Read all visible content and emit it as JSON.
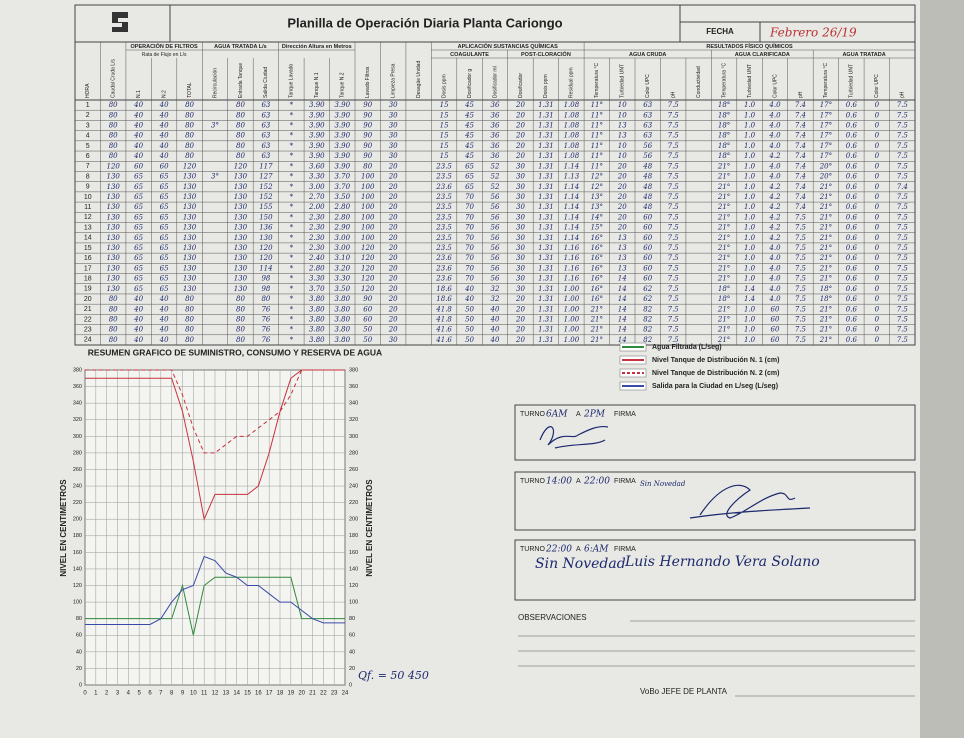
{
  "header": {
    "title": "Planilla de Operación Diaria Planta Cariongo",
    "fecha_label": "FECHA",
    "fecha": "Febrero 26/19"
  },
  "table": {
    "columns": [
      {
        "label": "HORA"
      },
      {
        "label": "Caudal Cruda L/s"
      },
      {
        "group": "OPERACIÓN DE FILTROS",
        "subtitle": "Rata de Flujo en L/s",
        "columns": [
          {
            "label": "N.1"
          },
          {
            "label": "N.2"
          },
          {
            "label": "TOTAL"
          }
        ]
      },
      {
        "group": "AGUA TRATADA L/s",
        "columns": [
          {
            "label": "Recirculación"
          },
          {
            "label": "Entrada Tanque"
          },
          {
            "label": "Salida Ciudad"
          }
        ]
      },
      {
        "group": "Dirección Altura en Metros",
        "columns": [
          {
            "label": "Tanque Lavado"
          },
          {
            "label": "Tanque N.1"
          },
          {
            "label": "Tanque N.2"
          }
        ]
      },
      {
        "label": "Lavado Filtros"
      },
      {
        "label": "Limpieza Presa"
      },
      {
        "label": "Desagüe Unidad"
      },
      {
        "group": "APLICACIÓN SUSTANCIAS QUÍMICAS",
        "columns": [
          {
            "group": "COAGULANTE",
            "columns": [
              {
                "label": "Dosis ppm"
              },
              {
                "label": "Dosificador g"
              },
              {
                "label": "Dosificador ml"
              }
            ]
          },
          {
            "group": "POST-CLORACIÓN",
            "columns": [
              {
                "label": "Dosificador"
              },
              {
                "label": "Dosis ppm"
              },
              {
                "label": "Residual ppm"
              }
            ]
          }
        ]
      },
      {
        "group": "RESULTADOS FÍSICO QUÍMICOS",
        "columns": [
          {
            "group": "AGUA CRUDA",
            "columns": [
              {
                "label": "Temperatura °C"
              },
              {
                "label": "Turbiedad UNT"
              },
              {
                "label": "Color UPC"
              },
              {
                "label": "pH"
              },
              {
                "label": "Conductividad"
              }
            ]
          },
          {
            "group": "AGUA CLARIFICADA",
            "columns": [
              {
                "label": "Temperatura °C"
              },
              {
                "label": "Turbiedad UNT"
              },
              {
                "label": "Color UPC"
              },
              {
                "label": "pH"
              }
            ]
          },
          {
            "group": "AGUA TRATADA",
            "columns": [
              {
                "label": "Temperatura °C"
              },
              {
                "label": "Turbiedad UNT"
              },
              {
                "label": "Color UPC"
              },
              {
                "label": "pH"
              }
            ]
          }
        ]
      }
    ],
    "rows": [
      [
        "1",
        "80",
        "40",
        "40",
        "80",
        null,
        "80",
        "63",
        "*",
        "3.90",
        "3.90",
        "90",
        "30",
        null,
        "15",
        "45",
        "36",
        "20",
        "1.31",
        "1.08",
        "11°",
        "10",
        "63",
        "7.5",
        null,
        "18°",
        "1.0",
        "4.0",
        "7.4",
        "17°",
        "0.6",
        "0",
        "7.5"
      ],
      [
        "2",
        "80",
        "40",
        "40",
        "80",
        null,
        "80",
        "63",
        "*",
        "3.90",
        "3.90",
        "90",
        "30",
        null,
        "15",
        "45",
        "36",
        "20",
        "1.31",
        "1.08",
        "11°",
        "10",
        "63",
        "7.5",
        null,
        "18°",
        "1.0",
        "4.0",
        "7.4",
        "17°",
        "0.6",
        "0",
        "7.5"
      ],
      [
        "3",
        "80",
        "40",
        "40",
        "80",
        "3°",
        "80",
        "63",
        "*",
        "3.90",
        "3.90",
        "90",
        "30",
        null,
        "15",
        "45",
        "36",
        "20",
        "1.31",
        "1.08",
        "11°",
        "13",
        "63",
        "7.5",
        null,
        "18°",
        "1.0",
        "4.0",
        "7.4",
        "17°",
        "0.6",
        "0",
        "7.5"
      ],
      [
        "4",
        "80",
        "40",
        "40",
        "80",
        null,
        "80",
        "63",
        "*",
        "3.90",
        "3.90",
        "90",
        "30",
        null,
        "15",
        "45",
        "36",
        "20",
        "1.31",
        "1.08",
        "11°",
        "13",
        "63",
        "7.5",
        null,
        "18°",
        "1.0",
        "4.0",
        "7.4",
        "17°",
        "0.6",
        "0",
        "7.5"
      ],
      [
        "5",
        "80",
        "40",
        "40",
        "80",
        null,
        "80",
        "63",
        "*",
        "3.90",
        "3.90",
        "90",
        "30",
        null,
        "15",
        "45",
        "36",
        "20",
        "1.31",
        "1.08",
        "11°",
        "10",
        "56",
        "7.5",
        null,
        "18°",
        "1.0",
        "4.0",
        "7.4",
        "17°",
        "0.6",
        "0",
        "7.5"
      ],
      [
        "6",
        "80",
        "40",
        "40",
        "80",
        null,
        "80",
        "63",
        "*",
        "3.90",
        "3.90",
        "90",
        "30",
        null,
        "15",
        "45",
        "36",
        "20",
        "1.31",
        "1.08",
        "11°",
        "10",
        "56",
        "7.5",
        null,
        "18°",
        "1.0",
        "4.2",
        "7.4",
        "17°",
        "0.6",
        "0",
        "7.5"
      ],
      [
        "7",
        "120",
        "60",
        "60",
        "120",
        null,
        "120",
        "117",
        "*",
        "3.60",
        "3.90",
        "80",
        "20",
        null,
        "23.5",
        "65",
        "52",
        "30",
        "1.31",
        "1.14",
        "11°",
        "20",
        "48",
        "7.5",
        null,
        "21°",
        "1.0",
        "4.0",
        "7.4",
        "20°",
        "0.6",
        "0",
        "7.5"
      ],
      [
        "8",
        "130",
        "65",
        "65",
        "130",
        "3°",
        "130",
        "127",
        "*",
        "3.30",
        "3.70",
        "100",
        "20",
        null,
        "23.5",
        "65",
        "52",
        "30",
        "1.31",
        "1.13",
        "12°",
        "20",
        "48",
        "7.5",
        null,
        "21°",
        "1.0",
        "4.0",
        "7.4",
        "20°",
        "0.6",
        "0",
        "7.5"
      ],
      [
        "9",
        "130",
        "65",
        "65",
        "130",
        null,
        "130",
        "152",
        "*",
        "3.00",
        "3.70",
        "100",
        "20",
        null,
        "23.6",
        "65",
        "52",
        "30",
        "1.31",
        "1.14",
        "12°",
        "20",
        "48",
        "7.5",
        null,
        "21°",
        "1.0",
        "4.2",
        "7.4",
        "21°",
        "0.6",
        "0",
        "7.4"
      ],
      [
        "10",
        "130",
        "65",
        "65",
        "130",
        null,
        "130",
        "152",
        "*",
        "2.70",
        "3.50",
        "100",
        "20",
        null,
        "23.5",
        "70",
        "56",
        "30",
        "1.31",
        "1.14",
        "13°",
        "20",
        "48",
        "7.5",
        null,
        "21°",
        "1.0",
        "4.2",
        "7.4",
        "21°",
        "0.6",
        "0",
        "7.5"
      ],
      [
        "11",
        "130",
        "65",
        "65",
        "130",
        null,
        "130",
        "155",
        "*",
        "2.00",
        "2.80",
        "100",
        "20",
        null,
        "23.5",
        "70",
        "56",
        "30",
        "1.31",
        "1.14",
        "13°",
        "20",
        "48",
        "7.5",
        null,
        "21°",
        "1.0",
        "4.2",
        "7.4",
        "21°",
        "0.6",
        "0",
        "7.5"
      ],
      [
        "12",
        "130",
        "65",
        "65",
        "130",
        null,
        "130",
        "150",
        "*",
        "2.30",
        "2.80",
        "100",
        "20",
        null,
        "23.5",
        "70",
        "56",
        "30",
        "1.31",
        "1.14",
        "14°",
        "20",
        "60",
        "7.5",
        null,
        "21°",
        "1.0",
        "4.2",
        "7.5",
        "21°",
        "0.6",
        "0",
        "7.5"
      ],
      [
        "13",
        "130",
        "65",
        "65",
        "130",
        null,
        "130",
        "136",
        "*",
        "2.30",
        "2.90",
        "100",
        "20",
        null,
        "23.5",
        "70",
        "56",
        "30",
        "1.31",
        "1.14",
        "15°",
        "20",
        "60",
        "7.5",
        null,
        "21°",
        "1.0",
        "4.2",
        "7.5",
        "21°",
        "0.6",
        "0",
        "7.5"
      ],
      [
        "14",
        "130",
        "65",
        "65",
        "130",
        null,
        "130",
        "130",
        "*",
        "2.30",
        "3.00",
        "100",
        "20",
        null,
        "23.5",
        "70",
        "56",
        "30",
        "1.31",
        "1.14",
        "16°",
        "13",
        "60",
        "7.5",
        null,
        "21°",
        "1.0",
        "4.2",
        "7.5",
        "21°",
        "0.6",
        "0",
        "7.5"
      ],
      [
        "15",
        "130",
        "65",
        "65",
        "130",
        null,
        "130",
        "120",
        "*",
        "2.30",
        "3.00",
        "120",
        "20",
        null,
        "23.5",
        "70",
        "56",
        "30",
        "1.31",
        "1.16",
        "16°",
        "13",
        "60",
        "7.5",
        null,
        "21°",
        "1.0",
        "4.0",
        "7.5",
        "21°",
        "0.6",
        "0",
        "7.5"
      ],
      [
        "16",
        "130",
        "65",
        "65",
        "130",
        null,
        "130",
        "120",
        "*",
        "2.40",
        "3.10",
        "120",
        "20",
        null,
        "23.6",
        "70",
        "56",
        "30",
        "1.31",
        "1.16",
        "16°",
        "13",
        "60",
        "7.5",
        null,
        "21°",
        "1.0",
        "4.0",
        "7.5",
        "21°",
        "0.6",
        "0",
        "7.5"
      ],
      [
        "17",
        "130",
        "65",
        "65",
        "130",
        null,
        "130",
        "114",
        "*",
        "2.80",
        "3.20",
        "120",
        "20",
        null,
        "23.6",
        "70",
        "56",
        "30",
        "1.31",
        "1.16",
        "16°",
        "13",
        "60",
        "7.5",
        null,
        "21°",
        "1.0",
        "4.0",
        "7.5",
        "21°",
        "0.6",
        "0",
        "7.5"
      ],
      [
        "18",
        "130",
        "65",
        "65",
        "130",
        null,
        "130",
        "98",
        "*",
        "3.30",
        "3.30",
        "120",
        "20",
        null,
        "23.6",
        "70",
        "56",
        "30",
        "1.31",
        "1.16",
        "16°",
        "14",
        "60",
        "7.5",
        null,
        "21°",
        "1.0",
        "4.0",
        "7.5",
        "21°",
        "0.6",
        "0",
        "7.5"
      ],
      [
        "19",
        "130",
        "65",
        "65",
        "130",
        null,
        "130",
        "98",
        "*",
        "3.70",
        "3.50",
        "120",
        "20",
        null,
        "18.6",
        "40",
        "32",
        "30",
        "1.31",
        "1.00",
        "16°",
        "14",
        "62",
        "7.5",
        null,
        "18°",
        "1.4",
        "4.0",
        "7.5",
        "18°",
        "0.6",
        "0",
        "7.5"
      ],
      [
        "20",
        "80",
        "40",
        "40",
        "80",
        null,
        "80",
        "80",
        "*",
        "3.80",
        "3.80",
        "90",
        "20",
        null,
        "18.6",
        "40",
        "32",
        "20",
        "1.31",
        "1.00",
        "16°",
        "14",
        "62",
        "7.5",
        null,
        "18°",
        "1.4",
        "4.0",
        "7.5",
        "18°",
        "0.6",
        "0",
        "7.5"
      ],
      [
        "21",
        "80",
        "40",
        "40",
        "80",
        null,
        "80",
        "76",
        "*",
        "3.80",
        "3.80",
        "60",
        "20",
        null,
        "41.8",
        "50",
        "40",
        "20",
        "1.31",
        "1.00",
        "21°",
        "14",
        "82",
        "7.5",
        null,
        "21°",
        "1.0",
        "60",
        "7.5",
        "21°",
        "0.6",
        "0",
        "7.5"
      ],
      [
        "22",
        "80",
        "40",
        "40",
        "80",
        null,
        "80",
        "76",
        "*",
        "3.80",
        "3.80",
        "60",
        "20",
        null,
        "41.8",
        "50",
        "40",
        "20",
        "1.31",
        "1.00",
        "21°",
        "14",
        "82",
        "7.5",
        null,
        "21°",
        "1.0",
        "60",
        "7.5",
        "21°",
        "0.6",
        "0",
        "7.5"
      ],
      [
        "23",
        "80",
        "40",
        "40",
        "80",
        null,
        "80",
        "76",
        "*",
        "3.80",
        "3.80",
        "50",
        "20",
        null,
        "41.6",
        "50",
        "40",
        "20",
        "1.31",
        "1.00",
        "21°",
        "14",
        "82",
        "7.5",
        null,
        "21°",
        "1.0",
        "60",
        "7.5",
        "21°",
        "0.6",
        "0",
        "7.5"
      ],
      [
        "24",
        "80",
        "40",
        "40",
        "80",
        null,
        "80",
        "76",
        "*",
        "3.80",
        "3.80",
        "50",
        "30",
        null,
        "41.6",
        "50",
        "40",
        "20",
        "1.31",
        "1.00",
        "21°",
        "14",
        "82",
        "7.5",
        null,
        "21°",
        "1.0",
        "60",
        "7.5",
        "21°",
        "0.6",
        "0",
        "7.5"
      ]
    ]
  },
  "chart_data": {
    "type": "line",
    "title": "RESUMEN GRAFICO DE SUMINISTRO, CONSUMO Y RESERVA DE AGUA",
    "y_label": "NIVEL EN CENTIMETROS",
    "x": [
      0,
      1,
      2,
      3,
      4,
      5,
      6,
      7,
      8,
      9,
      10,
      11,
      12,
      13,
      14,
      15,
      16,
      17,
      18,
      19,
      20,
      21,
      22,
      23,
      24
    ],
    "xlim": [
      0,
      24
    ],
    "xticks": [
      0,
      1,
      2,
      3,
      4,
      5,
      6,
      7,
      8,
      9,
      10,
      11,
      12,
      13,
      14,
      15,
      16,
      17,
      18,
      19,
      20,
      21,
      22,
      23,
      24
    ],
    "ylim": [
      0,
      380
    ],
    "yticks": [
      0,
      20,
      40,
      60,
      80,
      100,
      120,
      140,
      160,
      180,
      200,
      220,
      240,
      260,
      280,
      300,
      320,
      340,
      360,
      380
    ],
    "grid": true,
    "series": [
      {
        "name": "Agua Filtrada (L/seg)",
        "color": "#2f8a3c",
        "line_style": "solid",
        "values": [
          80,
          80,
          80,
          80,
          80,
          80,
          80,
          80,
          80,
          120,
          60,
          120,
          130,
          130,
          130,
          130,
          130,
          130,
          130,
          130,
          80,
          80,
          80,
          80,
          80
        ]
      },
      {
        "name": "Nivel Tanque de Distribución N. 1 (cm)",
        "color": "#c8323c",
        "line_style": "solid",
        "values": [
          370,
          370,
          370,
          370,
          370,
          370,
          370,
          370,
          370,
          330,
          270,
          200,
          230,
          230,
          230,
          230,
          240,
          280,
          330,
          370,
          380,
          380,
          380,
          380,
          380
        ]
      },
      {
        "name": "Nivel Tanque de Distribución N. 2 (cm)",
        "color": "#c8323c",
        "line_style": "dashed",
        "values": [
          380,
          380,
          380,
          380,
          380,
          380,
          380,
          380,
          380,
          350,
          310,
          280,
          280,
          290,
          300,
          300,
          310,
          320,
          330,
          350,
          380,
          380,
          380,
          380,
          380
        ]
      },
      {
        "name": "Salida para la Ciudad en L/seg (L/seg)",
        "color": "#3a4aa8",
        "line_style": "solid",
        "values": [
          73,
          73,
          73,
          73,
          73,
          73,
          73,
          80,
          100,
          115,
          120,
          155,
          150,
          135,
          130,
          120,
          120,
          110,
          100,
          100,
          90,
          80,
          75,
          75,
          75
        ]
      }
    ],
    "annotation": "Qf. = 50 450"
  },
  "shift_labels": {
    "turno": "TURNO",
    "a": "A",
    "firma": "FIRMA"
  },
  "shifts": [
    {
      "desde": "6AM",
      "hasta": "2PM"
    },
    {
      "desde": "14:00",
      "hasta": "22:00",
      "nota": "Sin Novedad"
    },
    {
      "desde": "22:00",
      "hasta": "6:AM",
      "nota": "Sin Novedad",
      "nombre": "Luis Hernando Vera Solano"
    }
  ],
  "observaciones": "OBSERVACIONES",
  "vobo": "VoBo JEFE DE PLANTA"
}
